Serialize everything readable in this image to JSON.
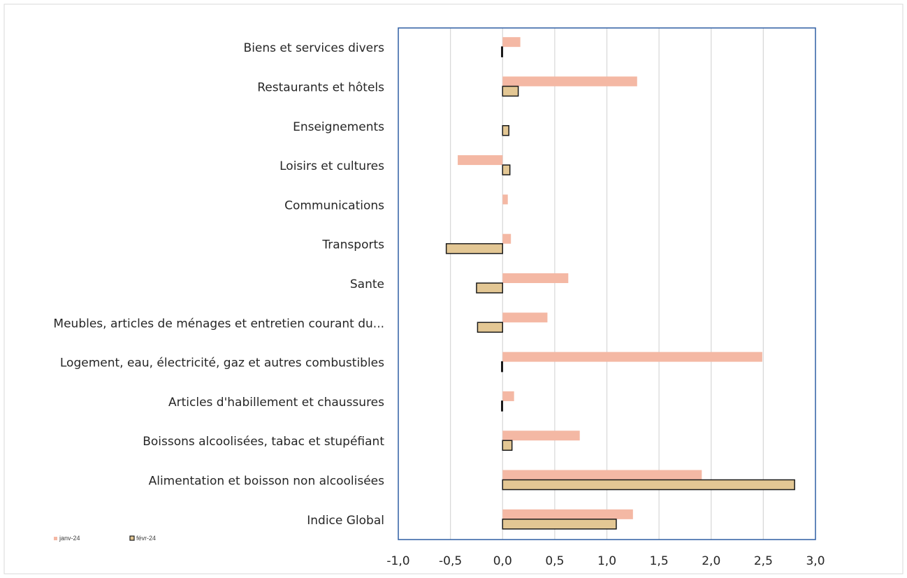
{
  "chart_data": {
    "type": "bar",
    "orientation": "horizontal",
    "title": "",
    "xlabel": "",
    "ylabel": "",
    "xlim": [
      -1.0,
      3.0
    ],
    "x_ticks": [
      "-1,0",
      "-0,5",
      "0,0",
      "0,5",
      "1,0",
      "1,5",
      "2,0",
      "2,5",
      "3,0"
    ],
    "x_tick_values": [
      -1.0,
      -0.5,
      0.0,
      0.5,
      1.0,
      1.5,
      2.0,
      2.5,
      3.0
    ],
    "grid": "vertical",
    "legend_position": "bottom-left",
    "categories": [
      "Biens et services divers",
      "Restaurants et hôtels",
      "Enseignements",
      "Loisirs et cultures",
      "Communications",
      "Transports",
      "Sante",
      "Meubles, articles de ménages et entretien courant du...",
      "Logement, eau, électricité, gaz et autres combustibles",
      "Articles d'habillement et chaussures",
      "Boissons alcoolisées, tabac et stupéfiant",
      "Alimentation et boisson non alcoolisées",
      "Indice Global"
    ],
    "series": [
      {
        "name": "janv-24",
        "color": "#f4b8a4",
        "values": [
          0.17,
          1.29,
          0.0,
          -0.43,
          0.05,
          0.08,
          0.63,
          0.43,
          2.49,
          0.11,
          0.74,
          1.91,
          1.25
        ]
      },
      {
        "name": "févr-24",
        "color": "#e3c794",
        "values": [
          -0.01,
          0.15,
          0.06,
          0.07,
          0.0,
          -0.54,
          -0.25,
          -0.24,
          -0.01,
          -0.01,
          0.09,
          2.8,
          1.09
        ]
      }
    ]
  },
  "colors": {
    "plot_border": "#2e5fa3",
    "grid": "#d9d9d9",
    "janv_fill": "#f4b8a4",
    "fevr_fill": "#e3c794",
    "fevr_stroke": "#1a1a1a"
  }
}
